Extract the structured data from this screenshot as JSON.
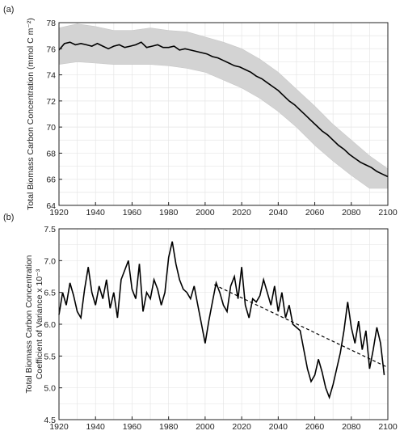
{
  "chart_data": [
    {
      "panel_label": "(a)",
      "type": "line",
      "ylabel": "Total Biomass Carbon Concentration (mmol C m⁻²)",
      "xlim": [
        1920,
        2100
      ],
      "ylim": [
        64,
        78
      ],
      "xticks": [
        1920,
        1940,
        1960,
        1980,
        2000,
        2020,
        2040,
        2060,
        2080,
        2100
      ],
      "yticks": [
        64,
        66,
        68,
        70,
        72,
        74,
        76,
        78
      ],
      "grid": true,
      "ensemble_color": "#d3d3d3",
      "ensemble_band": {
        "x": [
          1920,
          1930,
          1940,
          1950,
          1960,
          1970,
          1980,
          1990,
          2000,
          2010,
          2020,
          2030,
          2040,
          2050,
          2060,
          2070,
          2080,
          2090,
          2100
        ],
        "upper": [
          77.6,
          77.9,
          77.7,
          77.4,
          77.4,
          77.6,
          77.4,
          77.3,
          76.9,
          76.5,
          76.0,
          75.2,
          74.2,
          72.9,
          71.6,
          70.2,
          69.0,
          67.8,
          66.8
        ],
        "lower": [
          74.8,
          75.0,
          74.9,
          74.8,
          74.8,
          74.8,
          74.7,
          74.5,
          74.2,
          73.6,
          73.0,
          72.2,
          71.2,
          70.0,
          68.6,
          67.4,
          66.3,
          65.3,
          65.3
        ]
      },
      "series": [
        {
          "color": "#000000",
          "x": [
            1920,
            1923,
            1926,
            1929,
            1932,
            1935,
            1938,
            1941,
            1944,
            1947,
            1950,
            1953,
            1956,
            1959,
            1962,
            1965,
            1968,
            1971,
            1974,
            1977,
            1980,
            1983,
            1986,
            1989,
            1992,
            1995,
            1998,
            2001,
            2004,
            2007,
            2010,
            2013,
            2016,
            2019,
            2022,
            2025,
            2028,
            2031,
            2034,
            2037,
            2040,
            2043,
            2046,
            2049,
            2052,
            2055,
            2058,
            2061,
            2064,
            2067,
            2070,
            2073,
            2076,
            2079,
            2082,
            2085,
            2088,
            2091,
            2094,
            2097,
            2100
          ],
          "values": [
            75.9,
            76.4,
            76.5,
            76.3,
            76.4,
            76.3,
            76.2,
            76.4,
            76.2,
            76.0,
            76.2,
            76.3,
            76.1,
            76.2,
            76.3,
            76.5,
            76.1,
            76.2,
            76.3,
            76.1,
            76.1,
            76.2,
            75.9,
            76.0,
            75.9,
            75.8,
            75.7,
            75.6,
            75.4,
            75.3,
            75.1,
            74.9,
            74.7,
            74.6,
            74.4,
            74.2,
            73.9,
            73.7,
            73.4,
            73.1,
            72.8,
            72.4,
            72.0,
            71.7,
            71.3,
            70.9,
            70.5,
            70.1,
            69.7,
            69.4,
            69.0,
            68.6,
            68.3,
            67.9,
            67.6,
            67.3,
            67.1,
            66.9,
            66.6,
            66.4,
            66.2
          ]
        }
      ]
    },
    {
      "panel_label": "(b)",
      "type": "line",
      "ylabel_line1": "Total Biomass Carbon Concentration",
      "ylabel_line2": "Coefficient of Variance x 10⁻³",
      "xlim": [
        1920,
        2100
      ],
      "ylim": [
        4.5,
        7.5
      ],
      "xticks": [
        1920,
        1940,
        1960,
        1980,
        2000,
        2020,
        2040,
        2060,
        2080,
        2100
      ],
      "yticks": [
        4.5,
        5.0,
        5.5,
        6.0,
        6.5,
        7.0,
        7.5
      ],
      "grid": true,
      "series": [
        {
          "color": "#000000",
          "x": [
            1920,
            1922,
            1924,
            1926,
            1928,
            1930,
            1932,
            1934,
            1936,
            1938,
            1940,
            1942,
            1944,
            1946,
            1948,
            1950,
            1952,
            1954,
            1956,
            1958,
            1960,
            1962,
            1964,
            1966,
            1968,
            1970,
            1972,
            1974,
            1976,
            1978,
            1980,
            1982,
            1984,
            1986,
            1988,
            1990,
            1992,
            1994,
            1996,
            1998,
            2000,
            2002,
            2004,
            2006,
            2008,
            2010,
            2012,
            2014,
            2016,
            2018,
            2020,
            2022,
            2024,
            2026,
            2028,
            2030,
            2032,
            2034,
            2036,
            2038,
            2040,
            2042,
            2044,
            2046,
            2048,
            2050,
            2052,
            2054,
            2056,
            2058,
            2060,
            2062,
            2064,
            2066,
            2068,
            2070,
            2072,
            2074,
            2076,
            2078,
            2080,
            2082,
            2084,
            2086,
            2088,
            2090,
            2092,
            2094,
            2096,
            2098
          ],
          "values": [
            6.15,
            6.5,
            6.3,
            6.65,
            6.45,
            6.2,
            6.1,
            6.55,
            6.9,
            6.5,
            6.3,
            6.6,
            6.4,
            6.7,
            6.25,
            6.5,
            6.1,
            6.7,
            6.85,
            7.0,
            6.55,
            6.4,
            6.95,
            6.2,
            6.5,
            6.4,
            6.7,
            6.55,
            6.3,
            6.5,
            7.05,
            7.3,
            6.95,
            6.7,
            6.55,
            6.5,
            6.4,
            6.6,
            6.3,
            6.0,
            5.7,
            6.05,
            6.35,
            6.65,
            6.5,
            6.3,
            6.2,
            6.6,
            6.75,
            6.4,
            6.9,
            6.3,
            6.1,
            6.4,
            6.35,
            6.45,
            6.7,
            6.5,
            6.3,
            6.6,
            6.2,
            6.5,
            6.1,
            6.3,
            6.0,
            5.95,
            5.9,
            5.6,
            5.3,
            5.1,
            5.2,
            5.45,
            5.25,
            5.0,
            4.85,
            5.05,
            5.3,
            5.55,
            5.9,
            6.35,
            5.95,
            5.7,
            6.05,
            5.6,
            5.9,
            5.3,
            5.6,
            5.95,
            5.7,
            5.2
          ]
        },
        {
          "style": "dashed",
          "color": "#000000",
          "x": [
            2005,
            2100
          ],
          "values": [
            6.62,
            5.32
          ]
        }
      ]
    }
  ]
}
